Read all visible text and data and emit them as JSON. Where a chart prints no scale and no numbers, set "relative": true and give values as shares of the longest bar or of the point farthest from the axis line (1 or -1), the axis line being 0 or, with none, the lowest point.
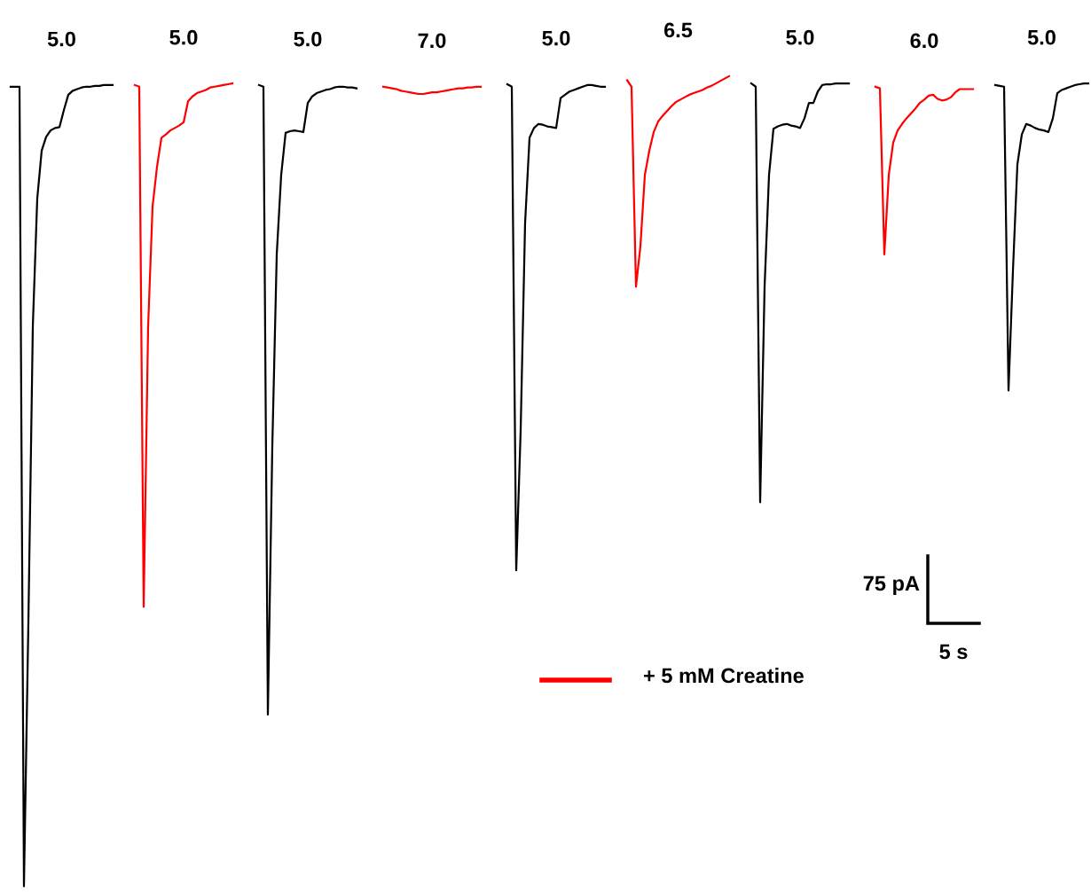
{
  "chart_data": {
    "type": "line",
    "relative": true,
    "marker": "none",
    "line_style": "solid",
    "categories": [
      null,
      null,
      null,
      null,
      null,
      null,
      null,
      null,
      null,
      null,
      null,
      null,
      null,
      null,
      null,
      null,
      null,
      null,
      null,
      null,
      null,
      null,
      null,
      null,
      null,
      null,
      null,
      null,
      null,
      null,
      null,
      null,
      null,
      null,
      null,
      null,
      null,
      null,
      null,
      null,
      null,
      null,
      null,
      null,
      null,
      null,
      null,
      null,
      null,
      null,
      null,
      null,
      null,
      null,
      null,
      null,
      null,
      null,
      null,
      null,
      null,
      null,
      null,
      null,
      null,
      null,
      null,
      null,
      null,
      null,
      null,
      null,
      null,
      null,
      null,
      null,
      null,
      null,
      null,
      null,
      null,
      null,
      null,
      null,
      null,
      null,
      null,
      null,
      null,
      null,
      null,
      null,
      null,
      null,
      null,
      null,
      null,
      null,
      null,
      null,
      null,
      null,
      null,
      null,
      null,
      null,
      null,
      null,
      null,
      null,
      null,
      null,
      null,
      null,
      null,
      null,
      null,
      null,
      null,
      null,
      null,
      null,
      null,
      null,
      null,
      null,
      null,
      null,
      null,
      null,
      null,
      null,
      null,
      null,
      null,
      null,
      null,
      null,
      null,
      null,
      null,
      null,
      null,
      null,
      null,
      null,
      null,
      null,
      null,
      null,
      null,
      null,
      null,
      null,
      null,
      null,
      null,
      null,
      null,
      null,
      null,
      null,
      null,
      null,
      null,
      null,
      null,
      null,
      null,
      null,
      null,
      null,
      null,
      null,
      null,
      null,
      null,
      null,
      null,
      null,
      null,
      null,
      null,
      null,
      null,
      null,
      null,
      null,
      null,
      null,
      null,
      null,
      null,
      null,
      null,
      null,
      null,
      null,
      null,
      null,
      null,
      null,
      null,
      null,
      null,
      null,
      null,
      null,
      null,
      null,
      null,
      null,
      null,
      null,
      null,
      null,
      null,
      null,
      null,
      null,
      null,
      null,
      null,
      null,
      null,
      null,
      null,
      null,
      null,
      null,
      null,
      null,
      null,
      null,
      null,
      null,
      null,
      null,
      null,
      null,
      null,
      null,
      null,
      null
    ],
    "series": [
      {
        "name": "5.0",
        "color": "#000000",
        "values": [
          0.987,
          0.987,
          0.987,
          0,
          0.326,
          0.691,
          0.849,
          0.908,
          0.925,
          0.933,
          0.936,
          0.937,
          0.958,
          0.977,
          0.982,
          0.984,
          0.986,
          0.987,
          0.987,
          0.988,
          0.988,
          0.989,
          0.989,
          0.989,
          null,
          null,
          null,
          null,
          null,
          null,
          null,
          null,
          null,
          null,
          null,
          null,
          null,
          null,
          null,
          null,
          null,
          null,
          null,
          null,
          null,
          null,
          null,
          null,
          null,
          null,
          null,
          null,
          null,
          null,
          null,
          null,
          null,
          null,
          null,
          null,
          null,
          null,
          null,
          null,
          null,
          null,
          null,
          null,
          null,
          null,
          null,
          null,
          null,
          null,
          null,
          null,
          null,
          null,
          null,
          null,
          null,
          null,
          null,
          null,
          null,
          null,
          null,
          null,
          null,
          null,
          null,
          null,
          null,
          null,
          null,
          null,
          null,
          null,
          null,
          null,
          null,
          null,
          null,
          null,
          null,
          null,
          null,
          null,
          null,
          null,
          null,
          null,
          null,
          null,
          null,
          null,
          null,
          null,
          null,
          null,
          null,
          null,
          null,
          null,
          null,
          null,
          null,
          null,
          null,
          null,
          null,
          null,
          null,
          null,
          null,
          null,
          null,
          null,
          null,
          null,
          null,
          null,
          null,
          null,
          null,
          null,
          null,
          null,
          null,
          null,
          null,
          null,
          null,
          null,
          null,
          null,
          null,
          null,
          null,
          null,
          null,
          null,
          null,
          null,
          null,
          null,
          null,
          null,
          null,
          null,
          null,
          null,
          null,
          null,
          null,
          null,
          null,
          null,
          null,
          null,
          null,
          null,
          null,
          null,
          null,
          null,
          null,
          null,
          null,
          null,
          null,
          null,
          null,
          null,
          null,
          null,
          null,
          null,
          null,
          null,
          null,
          null,
          null,
          null,
          null,
          null,
          null,
          null,
          null,
          null,
          null,
          null,
          null,
          null,
          null,
          null,
          null,
          null,
          null,
          null,
          null,
          null,
          null,
          null,
          null,
          null,
          null,
          null,
          null,
          null,
          null,
          null,
          null,
          null,
          null,
          null,
          null,
          null,
          null,
          null,
          null,
          null,
          null,
          null
        ]
      },
      {
        "name": "5.0",
        "color": "#ff0000",
        "values": [
          null,
          null,
          null,
          null,
          null,
          null,
          null,
          null,
          null,
          null,
          null,
          null,
          null,
          null,
          null,
          null,
          null,
          null,
          null,
          null,
          null,
          null,
          null,
          null,
          null,
          null,
          null,
          null,
          0.989,
          0.987,
          0.345,
          0.691,
          0.839,
          0.888,
          0.924,
          0.928,
          0.933,
          0.936,
          0.939,
          0.943,
          0.969,
          0.975,
          0.979,
          0.981,
          0.983,
          0.986,
          0.987,
          0.988,
          0.989,
          0.99,
          0.991,
          null,
          null,
          null,
          null,
          null,
          null,
          null,
          null,
          null,
          null,
          null,
          null,
          null,
          null,
          null,
          null,
          null,
          null,
          null,
          null,
          null,
          null,
          null,
          null,
          null,
          null,
          null,
          null,
          null,
          null,
          null,
          null,
          null,
          null,
          null,
          null,
          null,
          null,
          null,
          null,
          null,
          null,
          null,
          null,
          null,
          null,
          null,
          null,
          null,
          null,
          null,
          null,
          null,
          null,
          null,
          null,
          null,
          null,
          null,
          null,
          null,
          null,
          null,
          null,
          null,
          null,
          null,
          null,
          null,
          null,
          null,
          null,
          null,
          null,
          null,
          null,
          null,
          null,
          null,
          null,
          null,
          null,
          null,
          null,
          null,
          null,
          null,
          null,
          null,
          null,
          null,
          null,
          null,
          null,
          null,
          null,
          null,
          null,
          null,
          null,
          null,
          null,
          null,
          null,
          null,
          null,
          null,
          null,
          null,
          null,
          null,
          null,
          null,
          null,
          null,
          null,
          null,
          null,
          null,
          null,
          null,
          null,
          null,
          null,
          null,
          null,
          null,
          null,
          null,
          null,
          null,
          null,
          null,
          null,
          null,
          null,
          null,
          null,
          null,
          null,
          null,
          null,
          null,
          null,
          null,
          null,
          null,
          null,
          null,
          null,
          null,
          null,
          null,
          null,
          null,
          null,
          null,
          null,
          null,
          null,
          null,
          null,
          null,
          null,
          null,
          null,
          null,
          null,
          null,
          null,
          null,
          null,
          null,
          null,
          null,
          null,
          null,
          null,
          null,
          null,
          null,
          null,
          null,
          null,
          null,
          null,
          null,
          null,
          null,
          null,
          null,
          null,
          null
        ]
      },
      {
        "name": "5.0",
        "color": "#000000",
        "values": [
          null,
          null,
          null,
          null,
          null,
          null,
          null,
          null,
          null,
          null,
          null,
          null,
          null,
          null,
          null,
          null,
          null,
          null,
          null,
          null,
          null,
          null,
          null,
          null,
          null,
          null,
          null,
          null,
          null,
          null,
          null,
          null,
          null,
          null,
          null,
          null,
          null,
          null,
          null,
          null,
          null,
          null,
          null,
          null,
          null,
          null,
          null,
          null,
          null,
          null,
          null,
          null,
          null,
          null,
          null,
          null,
          0.989,
          0.987,
          0.212,
          0.543,
          0.78,
          0.878,
          0.93,
          0.932,
          0.933,
          0.932,
          0.931,
          0.967,
          0.975,
          0.979,
          0.981,
          0.983,
          0.984,
          0.986,
          0.987,
          0.987,
          0.986,
          0.986,
          0.985,
          null,
          null,
          null,
          null,
          null,
          null,
          null,
          null,
          null,
          null,
          null,
          null,
          null,
          null,
          null,
          null,
          null,
          null,
          null,
          null,
          null,
          null,
          null,
          null,
          null,
          null,
          null,
          null,
          null,
          null,
          null,
          null,
          null,
          null,
          null,
          null,
          null,
          null,
          null,
          null,
          null,
          null,
          null,
          null,
          null,
          null,
          null,
          null,
          null,
          null,
          null,
          null,
          null,
          null,
          null,
          null,
          null,
          null,
          null,
          null,
          null,
          null,
          null,
          null,
          null,
          null,
          null,
          null,
          null,
          null,
          null,
          null,
          null,
          null,
          null,
          null,
          null,
          null,
          null,
          null,
          null,
          null,
          null,
          null,
          null,
          null,
          null,
          null,
          null,
          null,
          null,
          null,
          null,
          null,
          null,
          null,
          null,
          null,
          null,
          null,
          null,
          null,
          null,
          null,
          null,
          null,
          null,
          null,
          null,
          null,
          null,
          null,
          null,
          null,
          null,
          null,
          null,
          null,
          null,
          null,
          null,
          null,
          null,
          null,
          null,
          null,
          null,
          null,
          null,
          null,
          null,
          null,
          null,
          null,
          null,
          null,
          null,
          null,
          null,
          null,
          null,
          null,
          null,
          null,
          null,
          null,
          null,
          null,
          null,
          null,
          null,
          null,
          null,
          null,
          null,
          null,
          null,
          null,
          null,
          null,
          null,
          null,
          null,
          null,
          null
        ]
      },
      {
        "name": "7.0",
        "color": "#ff0000",
        "values": [
          null,
          null,
          null,
          null,
          null,
          null,
          null,
          null,
          null,
          null,
          null,
          null,
          null,
          null,
          null,
          null,
          null,
          null,
          null,
          null,
          null,
          null,
          null,
          null,
          null,
          null,
          null,
          null,
          null,
          null,
          null,
          null,
          null,
          null,
          null,
          null,
          null,
          null,
          null,
          null,
          null,
          null,
          null,
          null,
          null,
          null,
          null,
          null,
          null,
          null,
          null,
          null,
          null,
          null,
          null,
          null,
          null,
          null,
          null,
          null,
          null,
          null,
          null,
          null,
          null,
          null,
          null,
          null,
          null,
          null,
          null,
          null,
          null,
          null,
          null,
          null,
          null,
          null,
          null,
          null,
          null,
          null,
          null,
          null,
          0.987,
          0.986,
          0.985,
          0.984,
          0.982,
          0.981,
          0.98,
          0.979,
          0.978,
          0.978,
          0.979,
          0.98,
          0.98,
          0.981,
          0.982,
          0.983,
          0.984,
          0.985,
          0.985,
          0.986,
          0.986,
          0.987,
          0.987,
          null,
          null,
          null,
          null,
          null,
          null,
          null,
          null,
          null,
          null,
          null,
          null,
          null,
          null,
          null,
          null,
          null,
          null,
          null,
          null,
          null,
          null,
          null,
          null,
          null,
          null,
          null,
          null,
          null,
          null,
          null,
          null,
          null,
          null,
          null,
          null,
          null,
          null,
          null,
          null,
          null,
          null,
          null,
          null,
          null,
          null,
          null,
          null,
          null,
          null,
          null,
          null,
          null,
          null,
          null,
          null,
          null,
          null,
          null,
          null,
          null,
          null,
          null,
          null,
          null,
          null,
          null,
          null,
          null,
          null,
          null,
          null,
          null,
          null,
          null,
          null,
          null,
          null,
          null,
          null,
          null,
          null,
          null,
          null,
          null,
          null,
          null,
          null,
          null,
          null,
          null,
          null,
          null,
          null,
          null,
          null,
          null,
          null,
          null,
          null,
          null,
          null,
          null,
          null,
          null,
          null,
          null,
          null,
          null,
          null,
          null,
          null,
          null,
          null,
          null,
          null,
          null,
          null,
          null,
          null,
          null,
          null,
          null,
          null,
          null,
          null,
          null,
          null,
          null,
          null,
          null,
          null,
          null,
          null,
          null,
          null,
          null
        ]
      },
      {
        "name": "5.0",
        "color": "#000000",
        "values": [
          null,
          null,
          null,
          null,
          null,
          null,
          null,
          null,
          null,
          null,
          null,
          null,
          null,
          null,
          null,
          null,
          null,
          null,
          null,
          null,
          null,
          null,
          null,
          null,
          null,
          null,
          null,
          null,
          null,
          null,
          null,
          null,
          null,
          null,
          null,
          null,
          null,
          null,
          null,
          null,
          null,
          null,
          null,
          null,
          null,
          null,
          null,
          null,
          null,
          null,
          null,
          null,
          null,
          null,
          null,
          null,
          null,
          null,
          null,
          null,
          null,
          null,
          null,
          null,
          null,
          null,
          null,
          null,
          null,
          null,
          null,
          null,
          null,
          null,
          null,
          null,
          null,
          null,
          null,
          null,
          null,
          null,
          null,
          null,
          null,
          null,
          null,
          null,
          null,
          null,
          null,
          null,
          null,
          null,
          null,
          null,
          null,
          null,
          null,
          null,
          null,
          null,
          null,
          null,
          null,
          null,
          null,
          null,
          null,
          null,
          null,
          null,
          0.99,
          0.987,
          0.39,
          0.563,
          0.819,
          0.924,
          0.936,
          0.941,
          0.94,
          0.938,
          0.937,
          0.936,
          0.973,
          0.977,
          0.981,
          0.983,
          0.985,
          0.987,
          0.989,
          0.989,
          0.988,
          0.987,
          0.987,
          null,
          null,
          null,
          null,
          null,
          null,
          null,
          null,
          null,
          null,
          null,
          null,
          null,
          null,
          null,
          null,
          null,
          null,
          null,
          null,
          null,
          null,
          null,
          null,
          null,
          null,
          null,
          null,
          null,
          null,
          null,
          null,
          null,
          null,
          null,
          null,
          null,
          null,
          null,
          null,
          null,
          null,
          null,
          null,
          null,
          null,
          null,
          null,
          null,
          null,
          null,
          null,
          null,
          null,
          null,
          null,
          null,
          null,
          null,
          null,
          null,
          null,
          null,
          null,
          null,
          null,
          null,
          null,
          null,
          null,
          null,
          null,
          null,
          null,
          null,
          null,
          null,
          null,
          null,
          null,
          null,
          null,
          null,
          null,
          null,
          null,
          null,
          null,
          null,
          null,
          null,
          null,
          null,
          null,
          null,
          null,
          null,
          null,
          null,
          null,
          null,
          null,
          null,
          null,
          null,
          null,
          null,
          null,
          null
        ]
      },
      {
        "name": "6.5",
        "color": "#ff0000",
        "values": [
          null,
          null,
          null,
          null,
          null,
          null,
          null,
          null,
          null,
          null,
          null,
          null,
          null,
          null,
          null,
          null,
          null,
          null,
          null,
          null,
          null,
          null,
          null,
          null,
          null,
          null,
          null,
          null,
          null,
          null,
          null,
          null,
          null,
          null,
          null,
          null,
          null,
          null,
          null,
          null,
          null,
          null,
          null,
          null,
          null,
          null,
          null,
          null,
          null,
          null,
          null,
          null,
          null,
          null,
          null,
          null,
          null,
          null,
          null,
          null,
          null,
          null,
          null,
          null,
          null,
          null,
          null,
          null,
          null,
          null,
          null,
          null,
          null,
          null,
          null,
          null,
          null,
          null,
          null,
          null,
          null,
          null,
          null,
          null,
          null,
          null,
          null,
          null,
          null,
          null,
          null,
          null,
          null,
          null,
          null,
          null,
          null,
          null,
          null,
          null,
          null,
          null,
          null,
          null,
          null,
          null,
          null,
          null,
          null,
          null,
          null,
          null,
          null,
          null,
          null,
          null,
          null,
          null,
          null,
          null,
          null,
          null,
          null,
          null,
          null,
          null,
          null,
          null,
          null,
          null,
          null,
          null,
          null,
          null,
          null,
          null,
          null,
          null,
          null,
          0.995,
          0.987,
          0.74,
          0.79,
          0.878,
          0.908,
          0.931,
          0.944,
          0.951,
          0.957,
          0.963,
          0.968,
          0.971,
          0.974,
          0.977,
          0.979,
          0.981,
          0.983,
          0.986,
          0.988,
          0.991,
          0.994,
          0.997,
          1,
          null,
          null,
          null,
          null,
          null,
          null,
          null,
          null,
          null,
          null,
          null,
          null,
          null,
          null,
          null,
          null,
          null,
          null,
          null,
          null,
          null,
          null,
          null,
          null,
          null,
          null,
          null,
          null,
          null,
          null,
          null,
          null,
          null,
          null,
          null,
          null,
          null,
          null,
          null,
          null,
          null,
          null,
          null,
          null,
          null,
          null,
          null,
          null,
          null,
          null,
          null,
          null,
          null,
          null,
          null,
          null,
          null,
          null,
          null,
          null,
          null,
          null,
          null,
          null,
          null,
          null,
          null,
          null,
          null,
          null,
          null,
          null,
          null,
          null,
          null,
          null,
          null,
          null,
          null,
          null,
          null
        ]
      },
      {
        "name": "5.0",
        "color": "#000000",
        "values": [
          null,
          null,
          null,
          null,
          null,
          null,
          null,
          null,
          null,
          null,
          null,
          null,
          null,
          null,
          null,
          null,
          null,
          null,
          null,
          null,
          null,
          null,
          null,
          null,
          null,
          null,
          null,
          null,
          null,
          null,
          null,
          null,
          null,
          null,
          null,
          null,
          null,
          null,
          null,
          null,
          null,
          null,
          null,
          null,
          null,
          null,
          null,
          null,
          null,
          null,
          null,
          null,
          null,
          null,
          null,
          null,
          null,
          null,
          null,
          null,
          null,
          null,
          null,
          null,
          null,
          null,
          null,
          null,
          null,
          null,
          null,
          null,
          null,
          null,
          null,
          null,
          null,
          null,
          null,
          null,
          null,
          null,
          null,
          null,
          null,
          null,
          null,
          null,
          null,
          null,
          null,
          null,
          null,
          null,
          null,
          null,
          null,
          null,
          null,
          null,
          null,
          null,
          null,
          null,
          null,
          null,
          null,
          null,
          null,
          null,
          null,
          null,
          null,
          null,
          null,
          null,
          null,
          null,
          null,
          null,
          null,
          null,
          null,
          null,
          null,
          null,
          null,
          null,
          null,
          null,
          null,
          null,
          null,
          null,
          null,
          null,
          null,
          null,
          null,
          null,
          null,
          null,
          null,
          null,
          null,
          null,
          null,
          null,
          null,
          null,
          null,
          null,
          null,
          null,
          null,
          null,
          null,
          null,
          null,
          null,
          null,
          null,
          null,
          null,
          null,
          null,
          null,
          0.991,
          0.987,
          0.474,
          0.74,
          0.878,
          0.935,
          0.938,
          0.94,
          0.941,
          0.939,
          0.938,
          0.936,
          0.948,
          0.967,
          0.967,
          0.981,
          0.989,
          0.99,
          0.99,
          0.991,
          0.991,
          0.991,
          0.991,
          null,
          null,
          null,
          null,
          null,
          null,
          null,
          null,
          null,
          null,
          null,
          null,
          null,
          null,
          null,
          null,
          null,
          null,
          null,
          null,
          null,
          null,
          null,
          null,
          null,
          null,
          null,
          null,
          null,
          null,
          null,
          null,
          null,
          null,
          null,
          null,
          null,
          null,
          null,
          null,
          null,
          null,
          null,
          null,
          null,
          null,
          null,
          null,
          null,
          null,
          null,
          null,
          null,
          null
        ]
      },
      {
        "name": "6.0",
        "color": "#ff0000",
        "values": [
          null,
          null,
          null,
          null,
          null,
          null,
          null,
          null,
          null,
          null,
          null,
          null,
          null,
          null,
          null,
          null,
          null,
          null,
          null,
          null,
          null,
          null,
          null,
          null,
          null,
          null,
          null,
          null,
          null,
          null,
          null,
          null,
          null,
          null,
          null,
          null,
          null,
          null,
          null,
          null,
          null,
          null,
          null,
          null,
          null,
          null,
          null,
          null,
          null,
          null,
          null,
          null,
          null,
          null,
          null,
          null,
          null,
          null,
          null,
          null,
          null,
          null,
          null,
          null,
          null,
          null,
          null,
          null,
          null,
          null,
          null,
          null,
          null,
          null,
          null,
          null,
          null,
          null,
          null,
          null,
          null,
          null,
          null,
          null,
          null,
          null,
          null,
          null,
          null,
          null,
          null,
          null,
          null,
          null,
          null,
          null,
          null,
          null,
          null,
          null,
          null,
          null,
          null,
          null,
          null,
          null,
          null,
          null,
          null,
          null,
          null,
          null,
          null,
          null,
          null,
          null,
          null,
          null,
          null,
          null,
          null,
          null,
          null,
          null,
          null,
          null,
          null,
          null,
          null,
          null,
          null,
          null,
          null,
          null,
          null,
          null,
          null,
          null,
          null,
          null,
          null,
          null,
          null,
          null,
          null,
          null,
          null,
          null,
          null,
          null,
          null,
          null,
          null,
          null,
          null,
          null,
          null,
          null,
          null,
          null,
          null,
          null,
          null,
          null,
          null,
          null,
          null,
          null,
          null,
          null,
          null,
          null,
          null,
          null,
          null,
          null,
          null,
          null,
          null,
          null,
          null,
          null,
          null,
          null,
          null,
          null,
          null,
          null,
          null,
          null,
          null,
          null,
          null,
          null,
          null,
          0.987,
          0.985,
          0.78,
          0.878,
          0.918,
          0.933,
          0.941,
          0.948,
          0.954,
          0.96,
          0.967,
          0.971,
          0.976,
          0.977,
          0.972,
          0.97,
          0.971,
          0.974,
          0.98,
          0.984,
          0.984,
          0.984,
          0.984,
          null,
          null,
          null,
          null,
          null,
          null,
          null,
          null,
          null,
          null,
          null,
          null,
          null,
          null,
          null,
          null,
          null,
          null,
          null,
          null,
          null,
          null,
          null,
          null,
          null,
          null
        ]
      },
      {
        "name": "5.0",
        "color": "#000000",
        "values": [
          null,
          null,
          null,
          null,
          null,
          null,
          null,
          null,
          null,
          null,
          null,
          null,
          null,
          null,
          null,
          null,
          null,
          null,
          null,
          null,
          null,
          null,
          null,
          null,
          null,
          null,
          null,
          null,
          null,
          null,
          null,
          null,
          null,
          null,
          null,
          null,
          null,
          null,
          null,
          null,
          null,
          null,
          null,
          null,
          null,
          null,
          null,
          null,
          null,
          null,
          null,
          null,
          null,
          null,
          null,
          null,
          null,
          null,
          null,
          null,
          null,
          null,
          null,
          null,
          null,
          null,
          null,
          null,
          null,
          null,
          null,
          null,
          null,
          null,
          null,
          null,
          null,
          null,
          null,
          null,
          null,
          null,
          null,
          null,
          null,
          null,
          null,
          null,
          null,
          null,
          null,
          null,
          null,
          null,
          null,
          null,
          null,
          null,
          null,
          null,
          null,
          null,
          null,
          null,
          null,
          null,
          null,
          null,
          null,
          null,
          null,
          null,
          null,
          null,
          null,
          null,
          null,
          null,
          null,
          null,
          null,
          null,
          null,
          null,
          null,
          null,
          null,
          null,
          null,
          null,
          null,
          null,
          null,
          null,
          null,
          null,
          null,
          null,
          null,
          null,
          null,
          null,
          null,
          null,
          null,
          null,
          null,
          null,
          null,
          null,
          null,
          null,
          null,
          null,
          null,
          null,
          null,
          null,
          null,
          null,
          null,
          null,
          null,
          null,
          null,
          null,
          null,
          null,
          null,
          null,
          null,
          null,
          null,
          null,
          null,
          null,
          null,
          null,
          null,
          null,
          null,
          null,
          null,
          null,
          null,
          null,
          null,
          null,
          null,
          null,
          null,
          null,
          null,
          null,
          null,
          null,
          null,
          null,
          null,
          null,
          null,
          null,
          null,
          null,
          null,
          null,
          null,
          null,
          null,
          null,
          null,
          null,
          null,
          null,
          null,
          null,
          null,
          null,
          null,
          null,
          null,
          null,
          0.989,
          0.988,
          0.987,
          0.612,
          0.76,
          0.891,
          0.928,
          0.941,
          0.939,
          0.936,
          0.934,
          0.933,
          0.931,
          0.948,
          0.979,
          0.983,
          0.985,
          0.987,
          0.989,
          0.99,
          0.991,
          0.991
        ]
      }
    ],
    "annotations": [
      "75 pA",
      "5 s",
      "+ 5 mM Creatine"
    ]
  }
}
